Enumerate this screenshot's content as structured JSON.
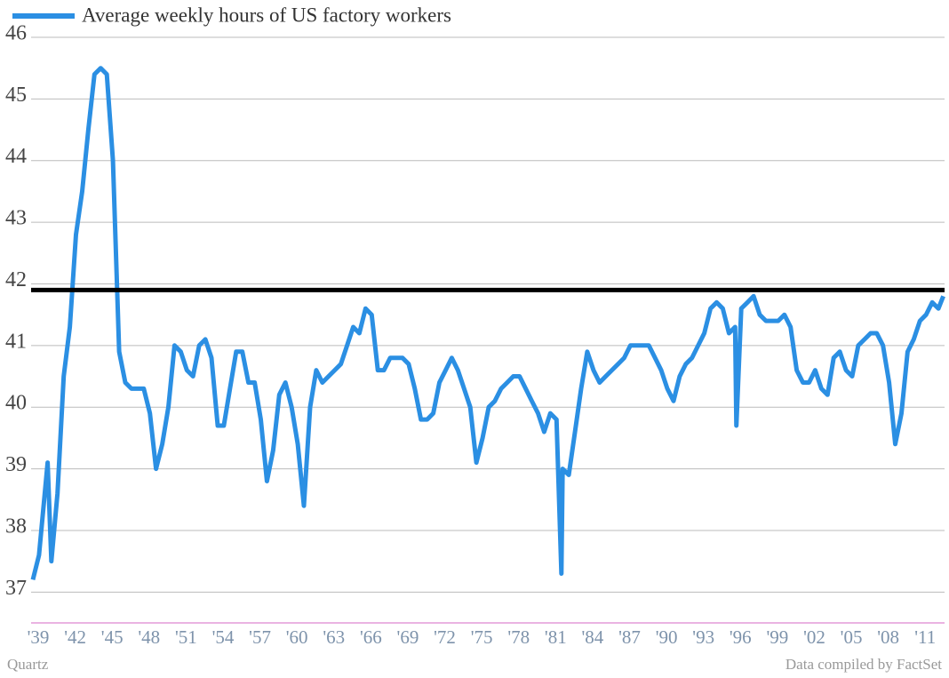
{
  "chart_data": {
    "type": "line",
    "series": [
      {
        "name": "Average weekly hours of US factory workers",
        "color": "#2b8fe3",
        "x": [
          1939.0,
          1939.5,
          1940.2,
          1940.5,
          1941.0,
          1941.5,
          1942.0,
          1942.5,
          1943.0,
          1943.5,
          1944.0,
          1944.5,
          1945.0,
          1945.5,
          1946.0,
          1946.5,
          1947.0,
          1947.5,
          1948.0,
          1948.5,
          1949.0,
          1949.5,
          1950.0,
          1950.5,
          1951.0,
          1951.5,
          1952.0,
          1952.5,
          1953.0,
          1953.5,
          1954.0,
          1954.5,
          1955.0,
          1955.5,
          1956.0,
          1956.5,
          1957.0,
          1957.5,
          1958.0,
          1958.5,
          1959.0,
          1959.5,
          1960.0,
          1960.5,
          1961.0,
          1961.5,
          1962.0,
          1962.5,
          1963.0,
          1963.5,
          1964.0,
          1964.5,
          1965.0,
          1965.5,
          1966.0,
          1966.5,
          1967.0,
          1967.5,
          1968.0,
          1968.5,
          1969.0,
          1969.5,
          1970.0,
          1970.5,
          1971.0,
          1971.5,
          1972.0,
          1972.5,
          1973.0,
          1973.5,
          1974.0,
          1974.5,
          1975.0,
          1975.5,
          1976.0,
          1976.5,
          1977.0,
          1977.5,
          1978.0,
          1978.5,
          1979.0,
          1979.5,
          1980.0,
          1980.5,
          1981.0,
          1981.5,
          1981.9,
          1982.0,
          1982.5,
          1983.0,
          1983.5,
          1984.0,
          1984.5,
          1985.0,
          1985.5,
          1986.0,
          1986.5,
          1987.0,
          1987.5,
          1988.0,
          1988.5,
          1989.0,
          1989.5,
          1990.0,
          1990.5,
          1991.0,
          1991.5,
          1992.0,
          1992.5,
          1993.0,
          1993.5,
          1994.0,
          1994.5,
          1995.0,
          1995.5,
          1996.0,
          1996.1,
          1996.5,
          1997.0,
          1997.5,
          1998.0,
          1998.5,
          1999.0,
          1999.5,
          2000.0,
          2000.5,
          2001.0,
          2001.5,
          2002.0,
          2002.5,
          2003.0,
          2003.5,
          2004.0,
          2004.5,
          2005.0,
          2005.5,
          2006.0,
          2006.5,
          2007.0,
          2007.5,
          2008.0,
          2008.5,
          2009.0,
          2009.5,
          2010.0,
          2010.5,
          2011.0,
          2011.5,
          2012.0,
          2012.5,
          2012.9
        ],
        "values": [
          37.2,
          37.6,
          39.1,
          37.5,
          38.6,
          40.5,
          41.3,
          42.8,
          43.5,
          44.5,
          45.4,
          45.5,
          45.4,
          44.0,
          40.9,
          40.4,
          40.3,
          40.3,
          40.3,
          39.9,
          39.0,
          39.4,
          40.0,
          41.0,
          40.9,
          40.6,
          40.5,
          41.0,
          41.1,
          40.8,
          39.7,
          39.7,
          40.3,
          40.9,
          40.9,
          40.4,
          40.4,
          39.8,
          38.8,
          39.3,
          40.2,
          40.4,
          40.0,
          39.4,
          38.4,
          40.0,
          40.6,
          40.4,
          40.5,
          40.6,
          40.7,
          41.0,
          41.3,
          41.2,
          41.6,
          41.5,
          40.6,
          40.6,
          40.8,
          40.8,
          40.8,
          40.7,
          40.3,
          39.8,
          39.8,
          39.9,
          40.4,
          40.6,
          40.8,
          40.6,
          40.3,
          40.0,
          39.1,
          39.5,
          40.0,
          40.1,
          40.3,
          40.4,
          40.5,
          40.5,
          40.3,
          40.1,
          39.9,
          39.6,
          39.9,
          39.8,
          37.3,
          39.0,
          38.9,
          39.6,
          40.3,
          40.9,
          40.6,
          40.4,
          40.5,
          40.6,
          40.7,
          40.8,
          41.0,
          41.0,
          41.0,
          41.0,
          40.8,
          40.6,
          40.3,
          40.1,
          40.5,
          40.7,
          40.8,
          41.0,
          41.2,
          41.6,
          41.7,
          41.6,
          41.2,
          41.3,
          39.7,
          41.6,
          41.7,
          41.8,
          41.5,
          41.4,
          41.4,
          41.4,
          41.5,
          41.3,
          40.6,
          40.4,
          40.4,
          40.6,
          40.3,
          40.2,
          40.8,
          40.9,
          40.6,
          40.5,
          41.0,
          41.1,
          41.2,
          41.2,
          41.0,
          40.4,
          39.4,
          39.9,
          40.9,
          41.1,
          41.4,
          41.5,
          41.7,
          41.6,
          41.8
        ]
      }
    ],
    "reference_line": 41.9,
    "reference_color": "#000000",
    "xlim": [
      1939,
      2013
    ],
    "xticks": [
      {
        "value": 1939,
        "label": "'39"
      },
      {
        "value": 1942,
        "label": "'42"
      },
      {
        "value": 1945,
        "label": "'45"
      },
      {
        "value": 1948,
        "label": "'48"
      },
      {
        "value": 1951,
        "label": "'51"
      },
      {
        "value": 1954,
        "label": "'54"
      },
      {
        "value": 1957,
        "label": "'57"
      },
      {
        "value": 1960,
        "label": "'60"
      },
      {
        "value": 1963,
        "label": "'63"
      },
      {
        "value": 1966,
        "label": "'66"
      },
      {
        "value": 1969,
        "label": "'69"
      },
      {
        "value": 1972,
        "label": "'72"
      },
      {
        "value": 1975,
        "label": "'75"
      },
      {
        "value": 1978,
        "label": "'78"
      },
      {
        "value": 1981,
        "label": "'81"
      },
      {
        "value": 1984,
        "label": "'84"
      },
      {
        "value": 1987,
        "label": "'87"
      },
      {
        "value": 1990,
        "label": "'90"
      },
      {
        "value": 1993,
        "label": "'93"
      },
      {
        "value": 1996,
        "label": "'96"
      },
      {
        "value": 1999,
        "label": "'99"
      },
      {
        "value": 2002,
        "label": "'02"
      },
      {
        "value": 2005,
        "label": "'05"
      },
      {
        "value": 2008,
        "label": "'08"
      },
      {
        "value": 2011,
        "label": "'11"
      }
    ],
    "ylim": [
      36.5,
      46
    ],
    "yticks": [
      37,
      38,
      39,
      40,
      41,
      42,
      43,
      44,
      45,
      46
    ],
    "grid": true,
    "source_left": "Quartz",
    "source_right": "Data compiled by FactSet"
  }
}
